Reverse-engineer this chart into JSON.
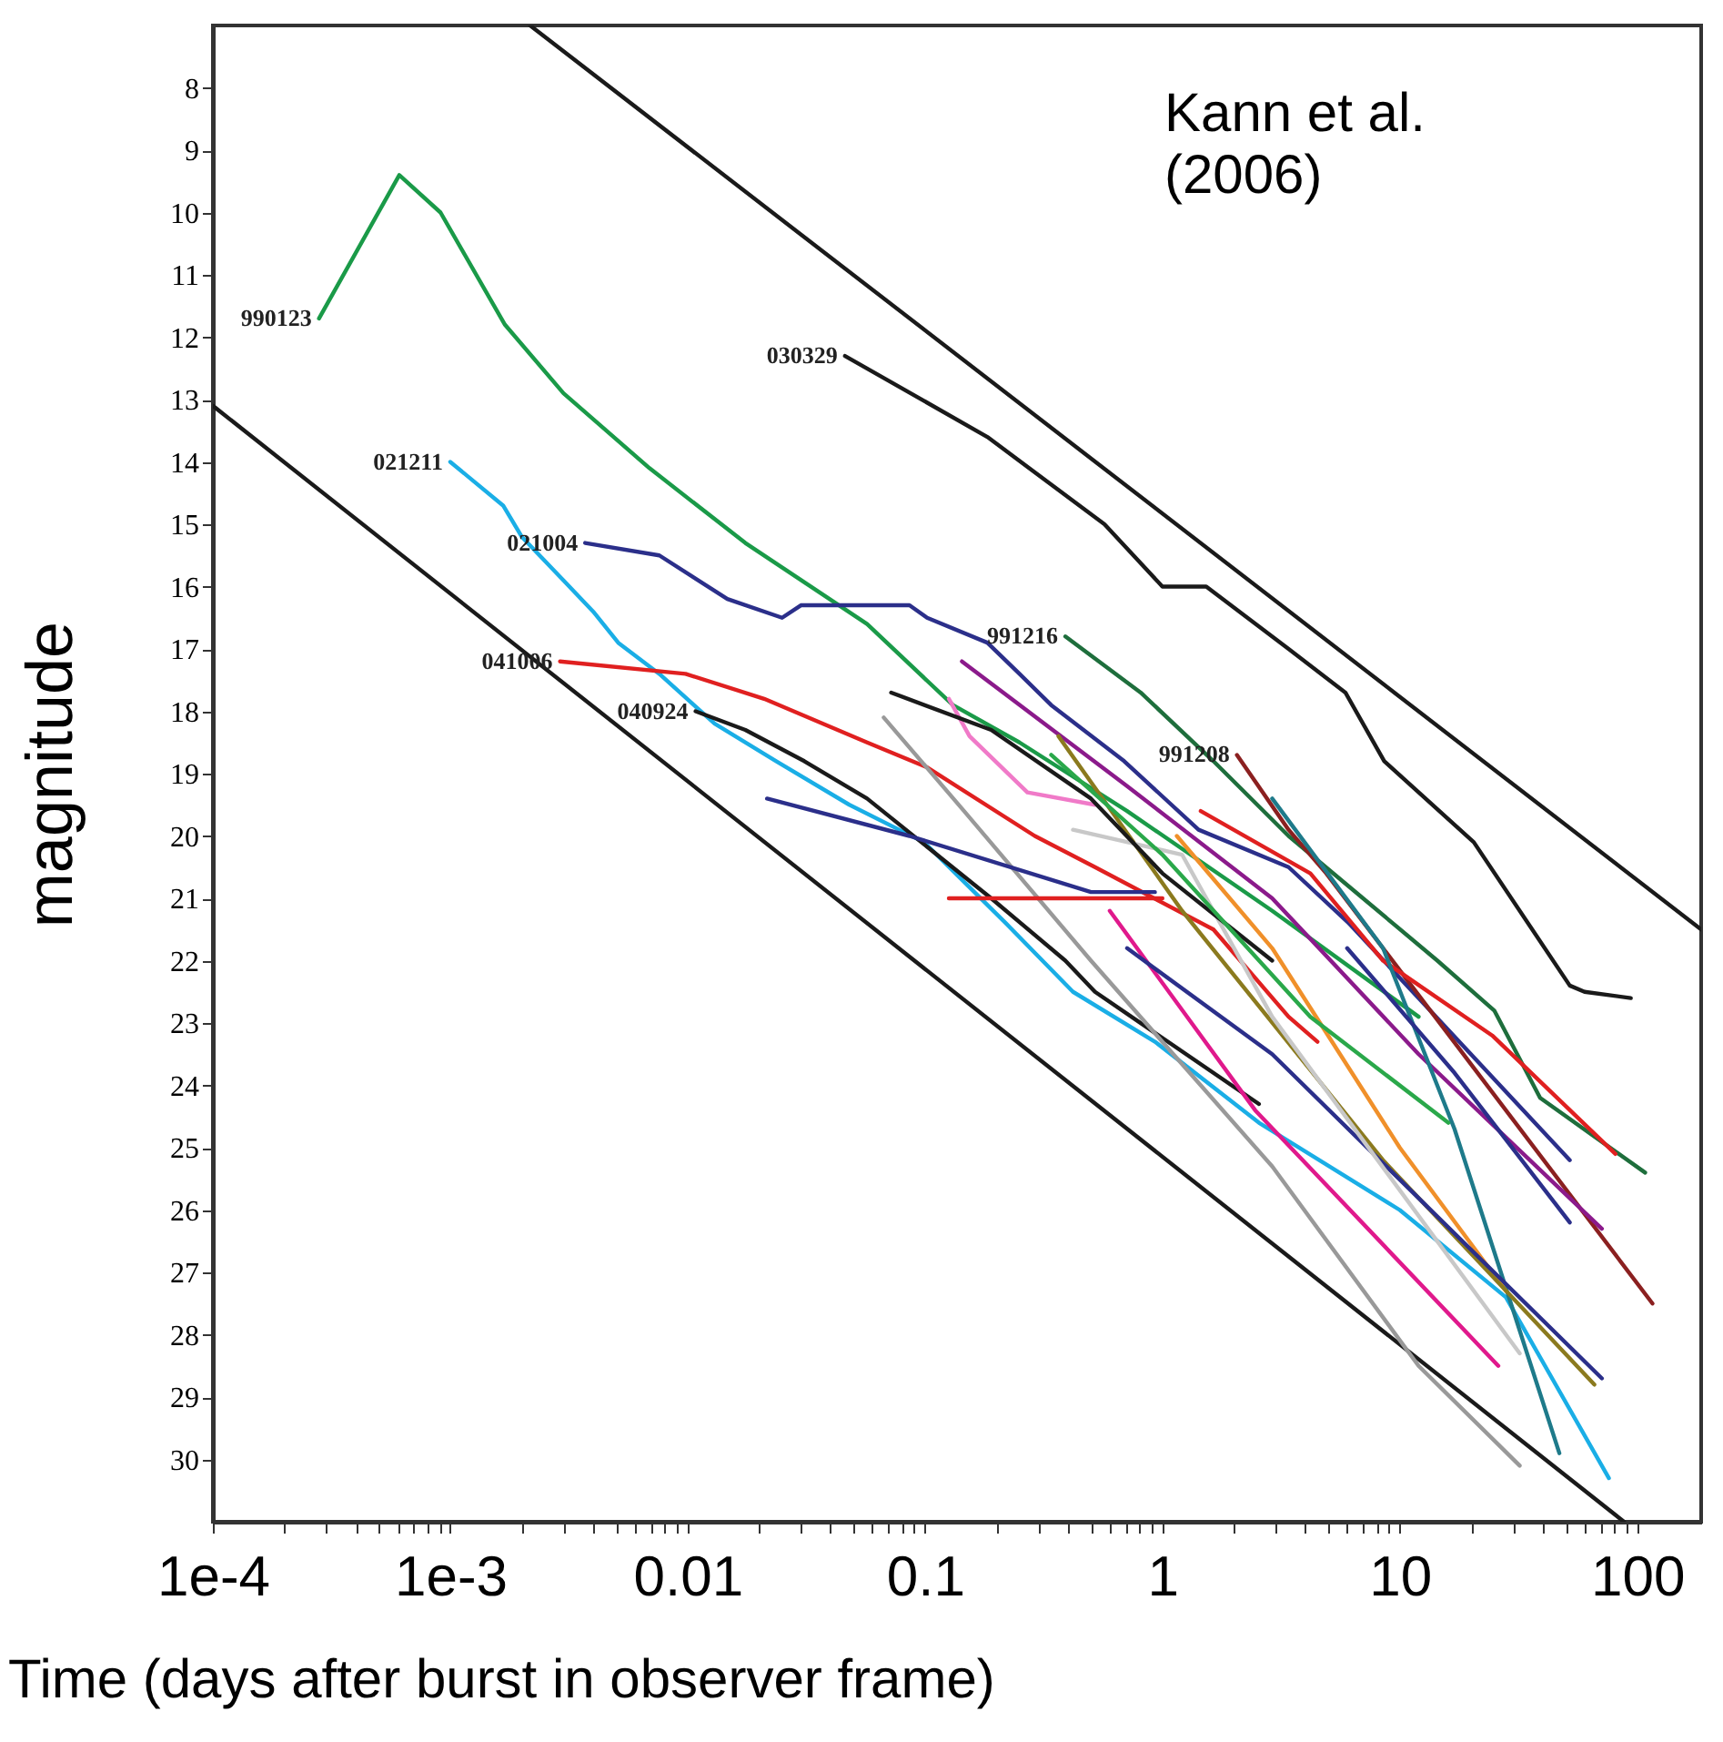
{
  "chart_data": {
    "type": "line",
    "xlabel": "Time (days after burst in observer frame)",
    "ylabel": "magnitude",
    "annotations": [
      "Kann et al.\n(2006)"
    ],
    "log": "x",
    "grid": false,
    "marker": "none",
    "line_style": "solid",
    "xlim": [
      0.0001,
      186
    ],
    "ylim": [
      31,
      7
    ],
    "xticks": [
      {
        "value": 0.0001,
        "label": "1e-4"
      },
      {
        "value": 0.0002,
        "label": null
      },
      {
        "value": 0.0003,
        "label": null
      },
      {
        "value": 0.0004,
        "label": null
      },
      {
        "value": 0.0005,
        "label": null
      },
      {
        "value": 0.0006,
        "label": null
      },
      {
        "value": 0.0007,
        "label": null
      },
      {
        "value": 0.0008,
        "label": null
      },
      {
        "value": 0.0009,
        "label": null
      },
      {
        "value": 0.001,
        "label": "1e-3"
      },
      {
        "value": 0.002,
        "label": null
      },
      {
        "value": 0.003,
        "label": null
      },
      {
        "value": 0.004,
        "label": null
      },
      {
        "value": 0.005,
        "label": null
      },
      {
        "value": 0.006,
        "label": null
      },
      {
        "value": 0.007,
        "label": null
      },
      {
        "value": 0.008,
        "label": null
      },
      {
        "value": 0.009,
        "label": null
      },
      0.01,
      {
        "value": 0.02,
        "label": null
      },
      {
        "value": 0.03,
        "label": null
      },
      {
        "value": 0.04,
        "label": null
      },
      {
        "value": 0.05,
        "label": null
      },
      {
        "value": 0.06,
        "label": null
      },
      {
        "value": 0.07,
        "label": null
      },
      {
        "value": 0.08,
        "label": null
      },
      {
        "value": 0.09,
        "label": null
      },
      0.1,
      {
        "value": 0.2,
        "label": null
      },
      {
        "value": 0.3,
        "label": null
      },
      {
        "value": 0.4,
        "label": null
      },
      {
        "value": 0.5,
        "label": null
      },
      {
        "value": 0.6,
        "label": null
      },
      {
        "value": 0.7,
        "label": null
      },
      {
        "value": 0.8,
        "label": null
      },
      {
        "value": 0.9,
        "label": null
      },
      1,
      {
        "value": 2,
        "label": null
      },
      {
        "value": 3,
        "label": null
      },
      {
        "value": 4,
        "label": null
      },
      {
        "value": 5,
        "label": null
      },
      {
        "value": 6,
        "label": null
      },
      {
        "value": 7,
        "label": null
      },
      {
        "value": 8,
        "label": null
      },
      {
        "value": 9,
        "label": null
      },
      10,
      {
        "value": 20,
        "label": null
      },
      {
        "value": 30,
        "label": null
      },
      {
        "value": 40,
        "label": null
      },
      {
        "value": 50,
        "label": null
      },
      {
        "value": 60,
        "label": null
      },
      {
        "value": 70,
        "label": null
      },
      {
        "value": 80,
        "label": null
      },
      {
        "value": 90,
        "label": null
      },
      100
    ],
    "yticks": [
      8,
      9,
      10,
      11,
      12,
      13,
      14,
      15,
      16,
      17,
      18,
      19,
      20,
      21,
      22,
      23,
      24,
      25,
      26,
      27,
      28,
      29,
      30
    ],
    "series": [
      {
        "color": "#1a1a1a",
        "x": [
          0.00217,
          186
        ],
        "values": [
          7.0,
          21.5
        ]
      },
      {
        "color": "#1a1a1a",
        "x": [
          0.0001,
          88
        ],
        "values": [
          13.1,
          31.0
        ]
      },
      {
        "name": "990123",
        "color": "#1a9a48",
        "x": [
          0.00028,
          0.00061,
          0.00091,
          0.0017,
          0.003,
          0.0069,
          0.0175,
          0.057,
          0.131,
          0.25,
          0.71,
          2.9,
          12
        ],
        "values": [
          11.7,
          9.4,
          10.0,
          11.8,
          12.9,
          14.1,
          15.3,
          16.6,
          17.9,
          18.5,
          19.6,
          21.2,
          22.9
        ]
      },
      {
        "name": "030329",
        "color": "#1a1a1a",
        "x": [
          0.046,
          0.183,
          0.57,
          1.0,
          1.53,
          3.4,
          5.9,
          8.6,
          20.5,
          52,
          60,
          94
        ],
        "values": [
          12.3,
          13.6,
          15.0,
          16.0,
          16.0,
          17.0,
          17.7,
          18.8,
          20.1,
          22.4,
          22.5,
          22.6
        ]
      },
      {
        "name": "021211",
        "color": "#1aaee6",
        "x": [
          0.001,
          0.00167,
          0.002,
          0.003,
          0.004,
          0.0051,
          0.0076,
          0.013,
          0.0236,
          0.048,
          0.099,
          0.219,
          0.42,
          0.93,
          2.55,
          10,
          28,
          76
        ],
        "values": [
          14.0,
          14.7,
          15.2,
          15.9,
          16.4,
          16.9,
          17.4,
          18.2,
          18.8,
          19.5,
          20.1,
          21.4,
          22.5,
          23.3,
          24.6,
          26.0,
          27.4,
          30.3
        ]
      },
      {
        "name": "021004",
        "color": "#2b2f8a",
        "x": [
          0.0037,
          0.0076,
          0.0147,
          0.025,
          0.03,
          0.086,
          0.102,
          0.183,
          0.25,
          0.34,
          0.69,
          1.42,
          3.4,
          6.1,
          52
        ],
        "values": [
          15.3,
          15.5,
          16.2,
          16.5,
          16.3,
          16.3,
          16.5,
          16.9,
          17.4,
          17.9,
          18.8,
          19.9,
          20.5,
          21.4,
          25.2
        ]
      },
      {
        "name": "041006",
        "color": "#e02020",
        "x": [
          0.0029,
          0.0098,
          0.021,
          0.057,
          0.102,
          0.29,
          0.52,
          1.64,
          3.4,
          4.5
        ],
        "values": [
          17.2,
          17.4,
          17.8,
          18.5,
          18.9,
          20.0,
          20.5,
          21.5,
          22.9,
          23.3
        ]
      },
      {
        "name": "040924",
        "color": "#1a1a1a",
        "x": [
          0.0108,
          0.0175,
          0.031,
          0.057,
          0.19,
          0.39,
          0.52,
          2.55
        ],
        "values": [
          18.0,
          18.3,
          18.8,
          19.4,
          21.0,
          22.0,
          22.5,
          24.3
        ]
      },
      {
        "name": "991216",
        "color": "#1e6e3c",
        "x": [
          0.39,
          0.81,
          1.64,
          3.4,
          7.0,
          14.4,
          25,
          39,
          108
        ],
        "values": [
          16.8,
          17.7,
          18.8,
          20.0,
          21.0,
          22.0,
          22.8,
          24.2,
          25.4
        ]
      },
      {
        "name": "991208",
        "color": "#8b2020",
        "x": [
          2.06,
          3.4,
          4.9,
          116
        ],
        "values": [
          18.7,
          19.9,
          20.6,
          27.5
        ]
      },
      {
        "color": "#8b1a8b",
        "x": [
          0.143,
          0.71,
          2.9,
          12,
          71
        ],
        "values": [
          17.2,
          19.2,
          21.0,
          23.5,
          26.3
        ]
      },
      {
        "color": "#e02020",
        "x": [
          1.45,
          4.2,
          8.5,
          24.5,
          81
        ],
        "values": [
          19.6,
          20.6,
          22.0,
          23.2,
          25.1
        ]
      },
      {
        "color": "#999999",
        "x": [
          0.067,
          0.146,
          0.5,
          2.9,
          12,
          32
        ],
        "values": [
          18.1,
          19.6,
          22.0,
          25.3,
          28.5,
          30.1
        ]
      },
      {
        "color": "#e0198c",
        "x": [
          0.6,
          2.46,
          26
        ],
        "values": [
          21.2,
          24.4,
          28.5
        ]
      },
      {
        "color": "#1e7a8a",
        "x": [
          2.9,
          8.5,
          17,
          47
        ],
        "values": [
          19.4,
          21.8,
          24.7,
          29.9
        ]
      },
      {
        "color": "#f0902a",
        "x": [
          1.15,
          2.9,
          10,
          28
        ],
        "values": [
          20.0,
          21.8,
          25.0,
          27.3
        ]
      },
      {
        "color": "#8b7a1e",
        "x": [
          0.365,
          1.21,
          8.5,
          66
        ],
        "values": [
          18.4,
          21.2,
          25.2,
          28.8
        ]
      },
      {
        "color": "#2b2f8a",
        "x": [
          0.0216,
          0.086,
          0.5,
          0.93
        ],
        "values": [
          19.4,
          20.0,
          20.9,
          20.9
        ]
      },
      {
        "color": "#e02020",
        "x": [
          0.126,
          1.0
        ],
        "values": [
          21.0,
          21.0
        ]
      },
      {
        "color": "#2b2f8a",
        "x": [
          0.71,
          2.9,
          71
        ],
        "values": [
          21.8,
          23.5,
          28.7
        ]
      },
      {
        "color": "#f07ac8",
        "x": [
          0.126,
          0.154,
          0.27,
          0.52
        ],
        "values": [
          17.8,
          18.4,
          19.3,
          19.5
        ]
      },
      {
        "color": "#c8c8c8",
        "x": [
          0.42,
          1.21,
          2.9,
          32
        ],
        "values": [
          19.9,
          20.3,
          22.9,
          28.3
        ]
      },
      {
        "color": "#1a1a1a",
        "x": [
          0.072,
          0.19,
          0.5,
          1.0,
          2.9
        ],
        "values": [
          17.7,
          18.3,
          19.4,
          20.6,
          22.0
        ]
      },
      {
        "color": "#2aa84a",
        "x": [
          0.34,
          1.0,
          4.2,
          16
        ],
        "values": [
          18.7,
          20.3,
          22.9,
          24.6
        ]
      },
      {
        "color": "#2b2f8a",
        "x": [
          6.0,
          17,
          52
        ],
        "values": [
          21.8,
          23.8,
          26.2
        ]
      }
    ]
  }
}
